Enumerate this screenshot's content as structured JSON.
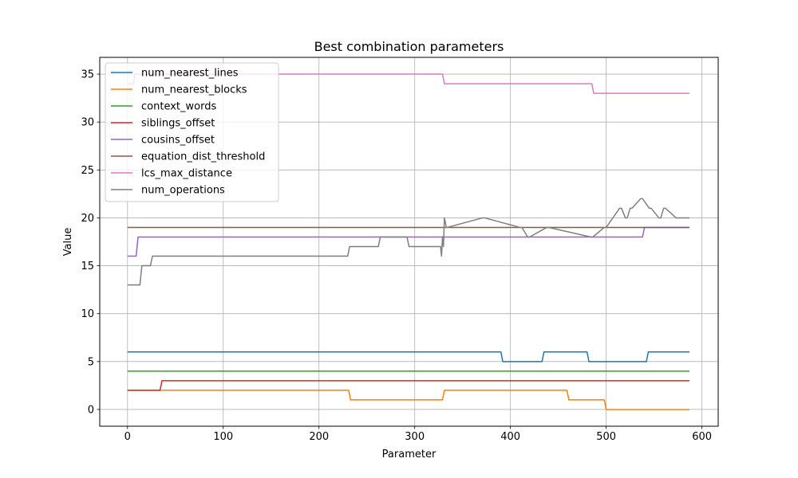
{
  "chart_data": {
    "type": "line",
    "title": "Best combination parameters",
    "xlabel": "Parameter",
    "ylabel": "Value",
    "xlim": [
      -29,
      617
    ],
    "ylim": [
      -1.75,
      36.75
    ],
    "xticks": [
      0,
      100,
      200,
      300,
      400,
      500,
      600
    ],
    "yticks": [
      0,
      5,
      10,
      15,
      20,
      25,
      30,
      35
    ],
    "grid": true,
    "legend_position": "upper-left",
    "series": [
      {
        "name": "num_nearest_lines",
        "color": "#1f77b4",
        "x": [
          0,
          390,
          392,
          433,
          435,
          480,
          482,
          542,
          544,
          587
        ],
        "y": [
          6,
          6,
          5,
          5,
          6,
          6,
          5,
          5,
          6,
          6
        ]
      },
      {
        "name": "num_nearest_blocks",
        "color": "#ff7f0e",
        "x": [
          0,
          231,
          233,
          329,
          331,
          459,
          461,
          498,
          500,
          587
        ],
        "y": [
          2,
          2,
          1,
          1,
          2,
          2,
          1,
          1,
          0,
          0
        ]
      },
      {
        "name": "context_words",
        "color": "#2ca02c",
        "x": [
          0,
          587
        ],
        "y": [
          4,
          4
        ]
      },
      {
        "name": "siblings_offset",
        "color": "#d62728",
        "x": [
          0,
          34,
          36,
          587
        ],
        "y": [
          2,
          2,
          3,
          3
        ]
      },
      {
        "name": "cousins_offset",
        "color": "#9467bd",
        "x": [
          0,
          9,
          11,
          538,
          540,
          587
        ],
        "y": [
          16,
          16,
          18,
          18,
          19,
          19
        ]
      },
      {
        "name": "equation_dist_threshold",
        "color": "#8c564b",
        "x": [
          0,
          587
        ],
        "y": [
          19,
          19
        ]
      },
      {
        "name": "lcs_max_distance",
        "color": "#e377c2",
        "x": [
          0,
          6,
          8,
          329,
          331,
          485,
          487,
          587
        ],
        "y": [
          34,
          34,
          35,
          35,
          34,
          34,
          33,
          33
        ]
      },
      {
        "name": "num_operations",
        "color": "#7f7f7f",
        "x": [
          0,
          13,
          15,
          24,
          26,
          230,
          232,
          262,
          264,
          292,
          294,
          327,
          328,
          329,
          330,
          331,
          333,
          334,
          371,
          373,
          410,
          412,
          418,
          420,
          438,
          440,
          484,
          486,
          498,
          500,
          514,
          516,
          520,
          522,
          525,
          527,
          536,
          538,
          545,
          547,
          555,
          557,
          560,
          562,
          573,
          575,
          587
        ],
        "y": [
          13,
          13,
          15,
          15,
          16,
          16,
          17,
          17,
          18,
          18,
          17,
          17,
          16,
          18,
          17,
          20,
          19,
          19,
          20,
          20,
          19,
          19,
          18,
          18,
          19,
          19,
          18,
          18,
          19,
          19,
          21,
          21,
          20,
          20,
          21,
          21,
          22,
          22,
          21,
          21,
          20,
          20,
          21,
          21,
          20,
          20,
          20
        ]
      }
    ]
  }
}
